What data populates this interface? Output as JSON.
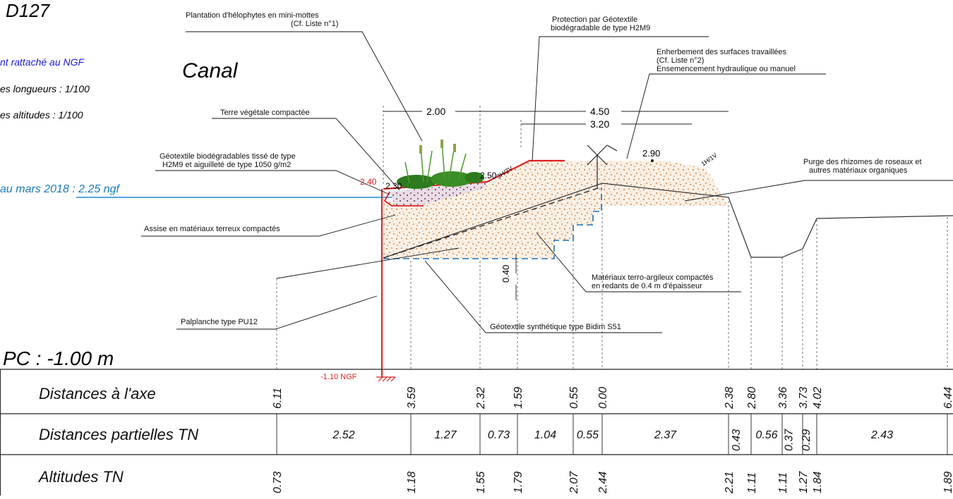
{
  "header": {
    "code": "D127",
    "section_name": "Canal",
    "notes": [
      "nt rattaché au NGF",
      "es longueurs : 1/100",
      "es altitudes : 1/100"
    ],
    "water_level": "au mars 2018 : 2.25 ngf",
    "pc": "PC : -1.00 m"
  },
  "annotations": {
    "helophytes_1": "Plantation d'hélophytes en mini-mottes",
    "helophytes_2": "(Cf. Liste n°1)",
    "geotextile_prot_1": "Protection par Géotextile",
    "geotextile_prot_2": "biodégradable de type H2M9",
    "enherbement_1": "Enherbement des surfaces travaillées",
    "enherbement_2": "(Cf. Liste n°2)",
    "enherbement_3": "Ensemencement hydraulique ou manuel",
    "terre_vegetale": "Terre végétale compactée",
    "geotextile_bio_1": "Géotextile biodégradables tissé de type",
    "geotextile_bio_2": "H2M9 et aiguilleté de type 1050 g/m2",
    "purge_1": "Purge des rhizomes de roseaux et",
    "purge_2": "autres matériaux organiques",
    "assise": "Assise en matériaux terreux compactés",
    "materiaux_1": "Matériaux terro-argileux compactés",
    "materiaux_2": "en redants de 0.4 m d'épaisseur",
    "palplanche": "Palplanche type PU12",
    "geotextile_synth": "Géotextile synthétique type Bidim S51",
    "ngf_bottom": "-1.10 NGF"
  },
  "dimensions": {
    "width_a": "2.00",
    "width_b": "4.50",
    "width_c": "3.20",
    "thickness": "0.40",
    "elev_240": "2.40",
    "elev_230": "2.30",
    "elev_250": "2.50",
    "elev_290": "2.90",
    "slope_3h2v": "3H/2V",
    "slope_1h1v": "1H/1V"
  },
  "table": {
    "row_labels": [
      "Distances à l'axe",
      "Distances partielles TN",
      "Altitudes TN"
    ],
    "distances_axe": [
      "6.11",
      "3.59",
      "2.32",
      "1.59",
      "0.55",
      "0.00",
      "2.38",
      "2.80",
      "3.36",
      "3.73",
      "4.02",
      "6.44"
    ],
    "distances_partielles": [
      "2.52",
      "1.27",
      "0.73",
      "1.04",
      "0.55",
      "2.37",
      "0.43",
      "0.56",
      "0.37",
      "0.29",
      "2.43"
    ],
    "altitudes": [
      "0.73",
      "1.18",
      "1.55",
      "1.79",
      "2.07",
      "2.44",
      "2.21",
      "1.11",
      "1.11",
      "1.27",
      "1.84",
      "1.89"
    ]
  },
  "colors": {
    "accent_red": "#e02020",
    "water_blue": "#1a8ad0",
    "dash_blue": "#1e6fb0",
    "note_blue": "#1a1aee",
    "fill_orange": "#d98a4a"
  }
}
